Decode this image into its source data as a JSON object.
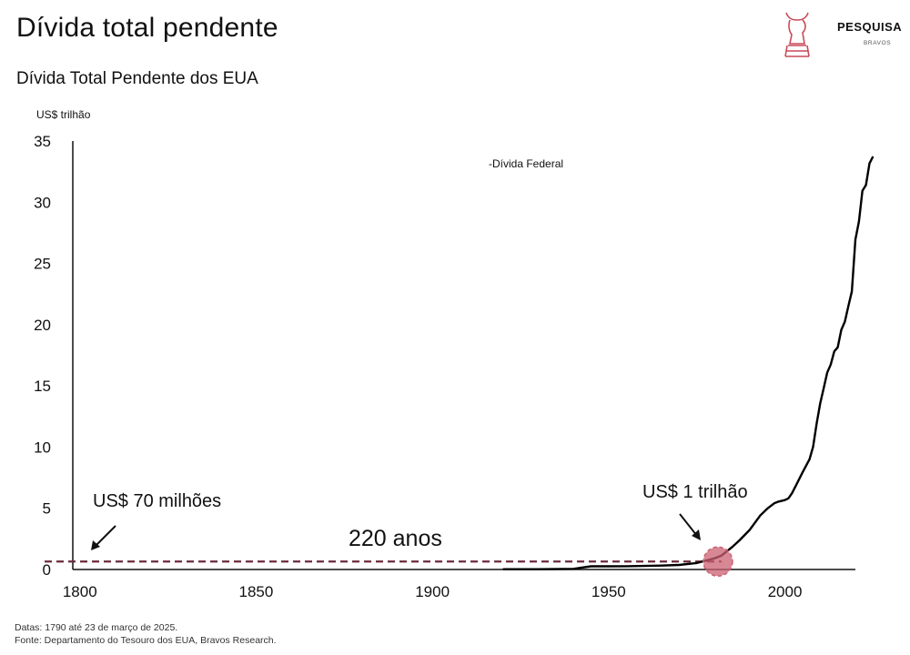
{
  "header": {
    "title": "Dívida total pendente",
    "brand_name": "PESQUISA",
    "brand_sub": "BRAVOS"
  },
  "footer": {
    "dates": "Datas: 1790 até 23 de março de 2025.",
    "source": "Fonte: Departamento do Tesouro dos EUA, Bravos Research."
  },
  "colors": {
    "line": "#000000",
    "dashed": "#6b2a3b",
    "highlight": "#c96070",
    "brand": "#c94a5a"
  },
  "chart_data": {
    "type": "line",
    "title": "Dívida Total Pendente dos EUA",
    "ylabel": "US$ trilhão",
    "xlim": [
      1798,
      2020
    ],
    "ylim": [
      0,
      35
    ],
    "xticks": [
      1800,
      1850,
      1900,
      1950,
      2000
    ],
    "yticks": [
      0,
      5,
      10,
      15,
      20,
      25,
      30,
      35
    ],
    "grid": false,
    "legend": "top-center",
    "series": [
      {
        "name": "Dívida Federal",
        "x": [
          1920,
          1930,
          1940,
          1945,
          1950,
          1955,
          1960,
          1965,
          1970,
          1975,
          1980,
          1982,
          1985,
          1987,
          1990,
          1993,
          1995,
          1997,
          1998,
          2000,
          2001,
          2002,
          2003,
          2005,
          2007,
          2008,
          2009,
          2010,
          2011,
          2012,
          2013,
          2014,
          2015,
          2016,
          2017,
          2018,
          2019,
          2020
        ],
        "y": [
          0.02,
          0.02,
          0.05,
          0.26,
          0.26,
          0.27,
          0.29,
          0.32,
          0.37,
          0.53,
          0.91,
          1.14,
          1.82,
          2.35,
          3.23,
          4.41,
          4.97,
          5.41,
          5.53,
          5.67,
          5.81,
          6.23,
          6.78,
          7.93,
          9.01,
          10.02,
          11.91,
          13.56,
          14.79,
          16.07,
          16.74,
          17.82,
          18.15,
          19.57,
          20.24,
          21.52,
          22.72,
          26.95
        ]
      }
    ],
    "series_extension": {
      "x": [
        2020,
        2021,
        2022,
        2023,
        2024,
        2025
      ],
      "y": [
        26.95,
        28.43,
        30.93,
        31.4,
        33.17,
        36.2
      ]
    },
    "baseline": {
      "value": 0.07,
      "from": 1790,
      "to": 1981
    },
    "highlight_point": {
      "x": 1981,
      "y": 1.0
    },
    "annotations": {
      "start": "US$ 70 milhões",
      "trillion": "US$ 1 trilhão",
      "span": "220 anos"
    }
  }
}
